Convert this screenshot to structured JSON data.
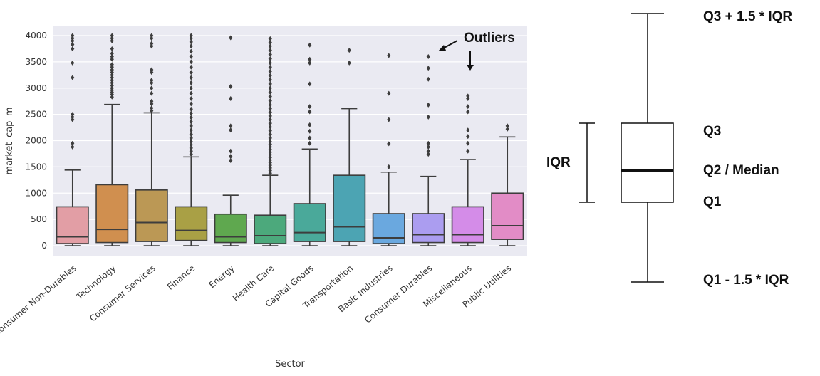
{
  "chart_data": [
    {
      "type": "box",
      "xlabel": "Sector",
      "ylabel": "market_cap_m",
      "ylim": [
        -200,
        4100
      ],
      "yticks": [
        0,
        500,
        1000,
        1500,
        2000,
        2500,
        3000,
        3500,
        4000
      ],
      "grid": true,
      "categories": [
        "Consumer Non-Durables",
        "Technology",
        "Consumer Services",
        "Finance",
        "Energy",
        "Health Care",
        "Capital Goods",
        "Transportation",
        "Basic Industries",
        "Consumer Durables",
        "Miscellaneous",
        "Public Utilities"
      ],
      "colors": [
        "#e29ea5",
        "#d08f4f",
        "#bb9855",
        "#a9a045",
        "#5fa84f",
        "#4ca97c",
        "#4aa99a",
        "#4ca4b3",
        "#6aa8df",
        "#ab9df0",
        "#d48ce8",
        "#e28cc6"
      ],
      "boxes": [
        {
          "min": 0,
          "q1": 40,
          "median": 170,
          "q3": 740,
          "max": 1440,
          "outliers": [
            1880,
            1950,
            2400,
            2450,
            2500,
            3200,
            3480,
            3750,
            3830,
            3900,
            3950,
            4000
          ]
        },
        {
          "min": 0,
          "q1": 60,
          "median": 310,
          "q3": 1160,
          "max": 2690,
          "outliers": [
            2830,
            2880,
            2920,
            2960,
            3000,
            3050,
            3100,
            3150,
            3200,
            3250,
            3300,
            3350,
            3400,
            3450,
            3550,
            3600,
            3660,
            3750,
            3900,
            3950,
            4000
          ]
        },
        {
          "min": 0,
          "q1": 80,
          "median": 440,
          "q3": 1060,
          "max": 2530,
          "outliers": [
            2570,
            2620,
            2700,
            2750,
            2900,
            3000,
            3100,
            3150,
            3300,
            3350,
            3800,
            3850,
            3950,
            4000
          ]
        },
        {
          "min": 0,
          "q1": 100,
          "median": 290,
          "q3": 740,
          "max": 1690,
          "outliers": [
            1740,
            1800,
            1860,
            1920,
            1980,
            2050,
            2120,
            2200,
            2280,
            2360,
            2440,
            2520,
            2600,
            2700,
            2800,
            2900,
            3000,
            3100,
            3200,
            3300,
            3400,
            3500,
            3600,
            3700,
            3800,
            3880,
            3950,
            4000
          ]
        },
        {
          "min": 0,
          "q1": 60,
          "median": 170,
          "q3": 600,
          "max": 960,
          "outliers": [
            1620,
            1700,
            1800,
            2200,
            2280,
            2800,
            3030,
            3960
          ]
        },
        {
          "min": 0,
          "q1": 40,
          "median": 190,
          "q3": 580,
          "max": 1340,
          "outliers": [
            1380,
            1430,
            1480,
            1530,
            1580,
            1630,
            1680,
            1730,
            1780,
            1830,
            1880,
            1930,
            1980,
            2050,
            2120,
            2190,
            2260,
            2330,
            2400,
            2470,
            2540,
            2610,
            2680,
            2760,
            2840,
            2920,
            3000,
            3080,
            3160,
            3240,
            3320,
            3400,
            3480,
            3560,
            3640,
            3720,
            3800,
            3870,
            3940
          ]
        },
        {
          "min": 0,
          "q1": 80,
          "median": 250,
          "q3": 800,
          "max": 1840,
          "outliers": [
            1950,
            2050,
            2180,
            2300,
            2550,
            2650,
            3080,
            3480,
            3550,
            3820
          ]
        },
        {
          "min": 0,
          "q1": 80,
          "median": 360,
          "q3": 1340,
          "max": 2610,
          "outliers": [
            3480,
            3720
          ]
        },
        {
          "min": 0,
          "q1": 40,
          "median": 150,
          "q3": 610,
          "max": 1400,
          "outliers": [
            1500,
            1940,
            2400,
            2900,
            3620
          ]
        },
        {
          "min": 0,
          "q1": 60,
          "median": 210,
          "q3": 610,
          "max": 1320,
          "outliers": [
            1740,
            1800,
            1880,
            1950,
            2450,
            2680,
            3170,
            3380,
            3600
          ]
        },
        {
          "min": 0,
          "q1": 60,
          "median": 210,
          "q3": 740,
          "max": 1640,
          "outliers": [
            1800,
            1950,
            2080,
            2200,
            2550,
            2650,
            2800,
            2850
          ]
        },
        {
          "min": 0,
          "q1": 120,
          "median": 380,
          "q3": 1000,
          "max": 2070,
          "outliers": [
            2220,
            2280
          ]
        }
      ],
      "annotations": [
        {
          "text": "Outliers"
        }
      ]
    },
    {
      "type": "diagram",
      "description_labels": [
        "Q3 + 1.5 * IQR",
        "Q3",
        "Q2 / Median",
        "Q1",
        "Q1 - 1.5 * IQR",
        "IQR"
      ]
    }
  ]
}
